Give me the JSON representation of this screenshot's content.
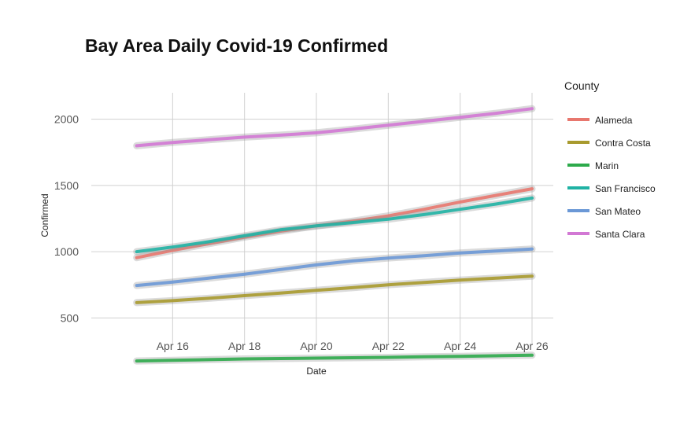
{
  "chart_data": {
    "type": "line",
    "title": "Bay Area Daily Covid-19 Confirmed",
    "xlabel": "Date",
    "ylabel": "Confirmed",
    "x": [
      "2020-04-15",
      "2020-04-16",
      "2020-04-17",
      "2020-04-18",
      "2020-04-19",
      "2020-04-20",
      "2020-04-21",
      "2020-04-22",
      "2020-04-23",
      "2020-04-24",
      "2020-04-25",
      "2020-04-26"
    ],
    "xlim": [
      "2020-04-14",
      "2020-04-26"
    ],
    "x_ticks": [
      "2020-04-16",
      "2020-04-18",
      "2020-04-20",
      "2020-04-22",
      "2020-04-24",
      "2020-04-26"
    ],
    "x_tick_labels": [
      "Apr 16",
      "Apr 18",
      "Apr 20",
      "Apr 22",
      "Apr 24",
      "Apr 26"
    ],
    "ylim": [
      300,
      2200
    ],
    "y_ticks": [
      500,
      1000,
      1500,
      2000
    ],
    "y_tick_labels": [
      "500",
      "1000",
      "1500",
      "2000"
    ],
    "grid": true,
    "legend": {
      "title": "County",
      "position": "right"
    },
    "series": [
      {
        "name": "Alameda",
        "color": "#e8776e",
        "values": [
          955,
          1010,
          1060,
          1110,
          1155,
          1195,
          1230,
          1270,
          1320,
          1375,
          1425,
          1475
        ]
      },
      {
        "name": "Contra Costa",
        "color": "#a89a2e",
        "values": [
          615,
          630,
          648,
          668,
          688,
          708,
          728,
          750,
          768,
          785,
          800,
          815
        ]
      },
      {
        "name": "Marin",
        "color": "#2daa4b",
        "values": [
          175,
          180,
          185,
          190,
          193,
          196,
          199,
          202,
          206,
          210,
          214,
          218
        ]
      },
      {
        "name": "San Francisco",
        "color": "#20b2a4",
        "values": [
          1000,
          1035,
          1075,
          1120,
          1165,
          1195,
          1220,
          1245,
          1280,
          1320,
          1360,
          1405
        ]
      },
      {
        "name": "San Mateo",
        "color": "#6b98d6",
        "values": [
          745,
          770,
          800,
          830,
          865,
          900,
          930,
          952,
          970,
          990,
          1005,
          1020
        ]
      },
      {
        "name": "Santa Clara",
        "color": "#d278d4",
        "values": [
          1800,
          1825,
          1845,
          1865,
          1880,
          1898,
          1925,
          1955,
          1985,
          2015,
          2045,
          2080
        ]
      }
    ]
  }
}
